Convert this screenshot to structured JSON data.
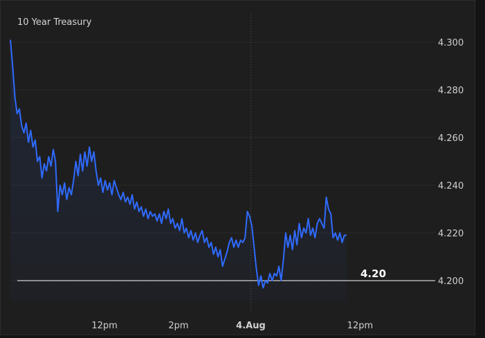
{
  "colors": {
    "background": "#1e1e1e",
    "line": "#2f6bff",
    "grid": "#2a2a2a",
    "reference_line": "#ffffff",
    "text": "#d0d0d0"
  },
  "chart_data": {
    "type": "line",
    "title": "10 Year Treasury",
    "xlabel": "",
    "ylabel": "",
    "ylim": [
      4.19,
      4.305
    ],
    "grid": true,
    "y_ticks": [
      {
        "value": 4.3,
        "label": "4.300"
      },
      {
        "value": 4.28,
        "label": "4.280"
      },
      {
        "value": 4.26,
        "label": "4.260"
      },
      {
        "value": 4.24,
        "label": "4.240"
      },
      {
        "value": 4.22,
        "label": "4.220"
      },
      {
        "value": 4.2,
        "label": "4.200"
      }
    ],
    "x_ticks": [
      {
        "label": "12pm",
        "t": 0.28,
        "bold": false
      },
      {
        "label": "2pm",
        "t": 0.5,
        "bold": false
      },
      {
        "label": "4.Aug",
        "t": 0.715,
        "bold": true
      },
      {
        "label": "12pm",
        "t": 1.04,
        "bold": false
      }
    ],
    "day_divider_t": 0.715,
    "reference_line": {
      "value": 4.2,
      "label": "4.20"
    },
    "series": [
      {
        "values": [
          4.301,
          4.29,
          4.277,
          4.27,
          4.272,
          4.265,
          4.262,
          4.266,
          4.258,
          4.263,
          4.256,
          4.259,
          4.25,
          4.252,
          4.243,
          4.249,
          4.246,
          4.252,
          4.248,
          4.255,
          4.25,
          4.229,
          4.24,
          4.236,
          4.241,
          4.234,
          4.239,
          4.236,
          4.242,
          4.25,
          4.244,
          4.253,
          4.246,
          4.254,
          4.248,
          4.256,
          4.25,
          4.254,
          4.246,
          4.24,
          4.243,
          4.237,
          4.242,
          4.238,
          4.241,
          4.236,
          4.242,
          4.239,
          4.236,
          4.234,
          4.237,
          4.233,
          4.235,
          4.232,
          4.236,
          4.23,
          4.233,
          4.229,
          4.231,
          4.227,
          4.23,
          4.226,
          4.229,
          4.227,
          4.228,
          4.225,
          4.228,
          4.224,
          4.229,
          4.226,
          4.23,
          4.224,
          4.226,
          4.222,
          4.224,
          4.221,
          4.226,
          4.22,
          4.222,
          4.218,
          4.221,
          4.217,
          4.22,
          4.216,
          4.219,
          4.221,
          4.216,
          4.218,
          4.214,
          4.216,
          4.211,
          4.214,
          4.21,
          4.213,
          4.206,
          4.209,
          4.212,
          4.216,
          4.218,
          4.214,
          4.217,
          4.214,
          4.217,
          4.216,
          4.218,
          4.229,
          4.227,
          4.223,
          4.214,
          4.205,
          4.198,
          4.202,
          4.197,
          4.2,
          4.199,
          4.203,
          4.2,
          4.203,
          4.202,
          4.206,
          4.2,
          4.209,
          4.22,
          4.214,
          4.219,
          4.213,
          4.221,
          4.215,
          4.224,
          4.218,
          4.222,
          4.22,
          4.226,
          4.219,
          4.222,
          4.218,
          4.224,
          4.226,
          4.224,
          4.222,
          4.235,
          4.23,
          4.228,
          4.218,
          4.22,
          4.217,
          4.22,
          4.216,
          4.219,
          4.219
        ]
      }
    ]
  }
}
